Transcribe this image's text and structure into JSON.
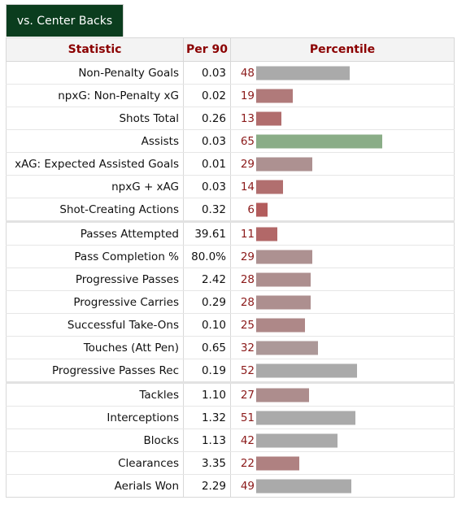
{
  "tab": {
    "label": "vs. Center Backs"
  },
  "headers": {
    "statistic": "Statistic",
    "per90": "Per 90",
    "percentile": "Percentile"
  },
  "colors": {
    "header_text": "#8b0000",
    "tab_bg": "#0b3d1e",
    "bar_high": "#8aad87",
    "bar_mid": "#aaaaaa",
    "bar_low": "#b35d5d"
  },
  "chart_data": {
    "type": "bar",
    "orientation": "horizontal",
    "xlim": [
      0,
      100
    ],
    "groups": [
      [
        {
          "stat": "Non-Penalty Goals",
          "per90": "0.03",
          "percentile": 48
        },
        {
          "stat": "npxG: Non-Penalty xG",
          "per90": "0.02",
          "percentile": 19
        },
        {
          "stat": "Shots Total",
          "per90": "0.26",
          "percentile": 13
        },
        {
          "stat": "Assists",
          "per90": "0.03",
          "percentile": 65
        },
        {
          "stat": "xAG: Expected Assisted Goals",
          "per90": "0.01",
          "percentile": 29
        },
        {
          "stat": "npxG + xAG",
          "per90": "0.03",
          "percentile": 14
        },
        {
          "stat": "Shot-Creating Actions",
          "per90": "0.32",
          "percentile": 6
        }
      ],
      [
        {
          "stat": "Passes Attempted",
          "per90": "39.61",
          "percentile": 11
        },
        {
          "stat": "Pass Completion %",
          "per90": "80.0%",
          "percentile": 29
        },
        {
          "stat": "Progressive Passes",
          "per90": "2.42",
          "percentile": 28
        },
        {
          "stat": "Progressive Carries",
          "per90": "0.29",
          "percentile": 28
        },
        {
          "stat": "Successful Take-Ons",
          "per90": "0.10",
          "percentile": 25
        },
        {
          "stat": "Touches (Att Pen)",
          "per90": "0.65",
          "percentile": 32
        },
        {
          "stat": "Progressive Passes Rec",
          "per90": "0.19",
          "percentile": 52
        }
      ],
      [
        {
          "stat": "Tackles",
          "per90": "1.10",
          "percentile": 27
        },
        {
          "stat": "Interceptions",
          "per90": "1.32",
          "percentile": 51
        },
        {
          "stat": "Blocks",
          "per90": "1.13",
          "percentile": 42
        },
        {
          "stat": "Clearances",
          "per90": "3.35",
          "percentile": 22
        },
        {
          "stat": "Aerials Won",
          "per90": "2.29",
          "percentile": 49
        }
      ]
    ]
  }
}
